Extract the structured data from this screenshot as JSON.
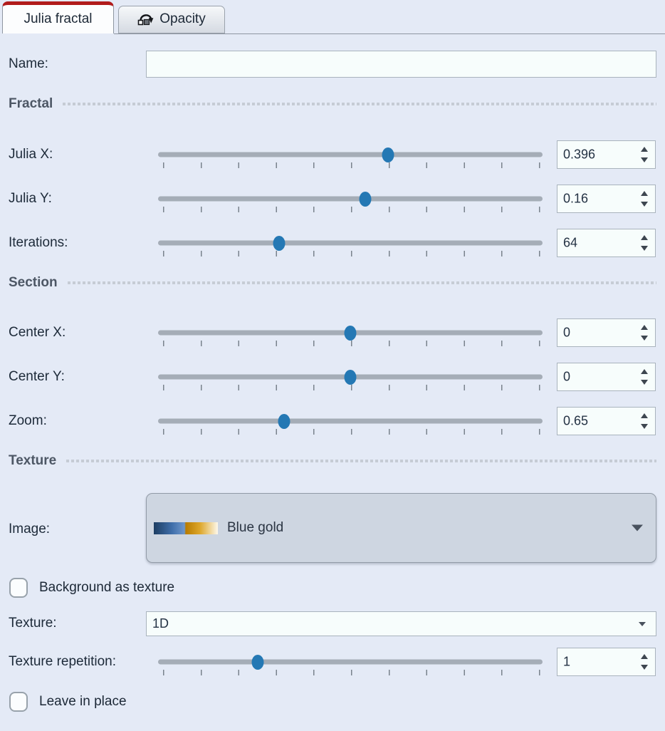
{
  "tabs": {
    "julia": {
      "label": "Julia fractal"
    },
    "opacity": {
      "label": "Opacity",
      "icon": "loop-swap-icon"
    }
  },
  "name_field": {
    "label": "Name:",
    "value": ""
  },
  "section_headers": {
    "fractal": "Fractal",
    "section": "Section",
    "texture": "Texture"
  },
  "sliders": [
    {
      "label": "Julia X:",
      "value": "0.396",
      "fraction": 0.598
    },
    {
      "label": "Julia Y:",
      "value": "0.16",
      "fraction": 0.538
    },
    {
      "label": "Iterations:",
      "value": "64",
      "fraction": 0.314
    },
    {
      "label": "Center X:",
      "value": "0",
      "fraction": 0.5
    },
    {
      "label": "Center Y:",
      "value": "0",
      "fraction": 0.5
    },
    {
      "label": "Zoom:",
      "value": "0.65",
      "fraction": 0.328
    },
    {
      "label": "Texture repetition:",
      "value": "1",
      "fraction": 0.259
    }
  ],
  "image_combo": {
    "label": "Image:",
    "value": "Blue gold",
    "swatch_colors": [
      "#1d3d62",
      "#3f6ea9",
      "#6e97cc",
      "#b97c00",
      "#dda62a",
      "#fdf8ea"
    ]
  },
  "texture_combo": {
    "label": "Texture:",
    "value": "1D"
  },
  "checkboxes": [
    {
      "label": "Background as texture",
      "checked": false
    },
    {
      "label": "Leave in place",
      "checked": false
    }
  ],
  "colors": {
    "background": "#e4eaf6",
    "tab_accent_red": "#b11b1b",
    "slider_handle_blue": "#2478b4",
    "slider_track_gray": "#a5adb7",
    "field_background": "#f7fdfc"
  }
}
